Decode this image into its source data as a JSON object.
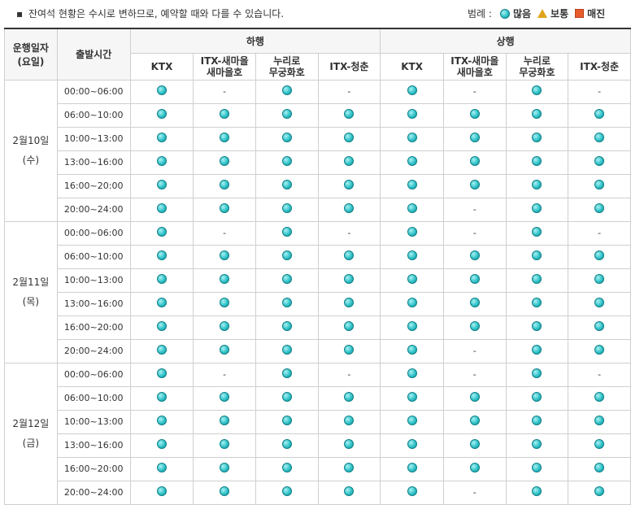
{
  "notice": {
    "bullet": "▪",
    "text": "잔여석 현황은 수시로 변하므로, 예약할 때와 다를 수 있습니다."
  },
  "legend": {
    "title": "범례 :",
    "items": [
      {
        "label": "많음",
        "icon": "circle-icon",
        "color": "#2fc2c8"
      },
      {
        "label": "보통",
        "icon": "triangle-icon",
        "color": "#e0a41a"
      },
      {
        "label": "매진",
        "icon": "square-icon",
        "color": "#e85b2a"
      }
    ]
  },
  "table": {
    "headers": {
      "date": "운행일자\n(요일)",
      "time": "출발시간",
      "down": "하행",
      "up": "상행",
      "trains": [
        "KTX",
        "ITX-새마을\n새마을호",
        "누리로\n무궁화호",
        "ITX-청춘"
      ]
    },
    "days": [
      {
        "date": "2월10일",
        "weekday": "(수)",
        "rows": [
          {
            "time": "00:00~06:00",
            "down": [
              "많음",
              "-",
              "많음",
              "-"
            ],
            "up": [
              "많음",
              "-",
              "많음",
              "-"
            ]
          },
          {
            "time": "06:00~10:00",
            "down": [
              "많음",
              "많음",
              "많음",
              "많음"
            ],
            "up": [
              "많음",
              "많음",
              "많음",
              "많음"
            ]
          },
          {
            "time": "10:00~13:00",
            "down": [
              "많음",
              "많음",
              "많음",
              "많음"
            ],
            "up": [
              "많음",
              "많음",
              "많음",
              "많음"
            ]
          },
          {
            "time": "13:00~16:00",
            "down": [
              "많음",
              "많음",
              "많음",
              "많음"
            ],
            "up": [
              "많음",
              "많음",
              "많음",
              "많음"
            ]
          },
          {
            "time": "16:00~20:00",
            "down": [
              "많음",
              "많음",
              "많음",
              "많음"
            ],
            "up": [
              "많음",
              "많음",
              "많음",
              "많음"
            ]
          },
          {
            "time": "20:00~24:00",
            "down": [
              "많음",
              "많음",
              "많음",
              "많음"
            ],
            "up": [
              "많음",
              "-",
              "많음",
              "많음"
            ]
          }
        ]
      },
      {
        "date": "2월11일",
        "weekday": "(목)",
        "rows": [
          {
            "time": "00:00~06:00",
            "down": [
              "많음",
              "-",
              "많음",
              "-"
            ],
            "up": [
              "많음",
              "-",
              "많음",
              "-"
            ]
          },
          {
            "time": "06:00~10:00",
            "down": [
              "많음",
              "많음",
              "많음",
              "많음"
            ],
            "up": [
              "많음",
              "많음",
              "많음",
              "많음"
            ]
          },
          {
            "time": "10:00~13:00",
            "down": [
              "많음",
              "많음",
              "많음",
              "많음"
            ],
            "up": [
              "많음",
              "많음",
              "많음",
              "많음"
            ]
          },
          {
            "time": "13:00~16:00",
            "down": [
              "많음",
              "많음",
              "많음",
              "많음"
            ],
            "up": [
              "많음",
              "많음",
              "많음",
              "많음"
            ]
          },
          {
            "time": "16:00~20:00",
            "down": [
              "많음",
              "많음",
              "많음",
              "많음"
            ],
            "up": [
              "많음",
              "많음",
              "많음",
              "많음"
            ]
          },
          {
            "time": "20:00~24:00",
            "down": [
              "많음",
              "많음",
              "많음",
              "많음"
            ],
            "up": [
              "많음",
              "-",
              "많음",
              "많음"
            ]
          }
        ]
      },
      {
        "date": "2월12일",
        "weekday": "(금)",
        "rows": [
          {
            "time": "00:00~06:00",
            "down": [
              "많음",
              "-",
              "많음",
              "-"
            ],
            "up": [
              "많음",
              "-",
              "많음",
              "-"
            ]
          },
          {
            "time": "06:00~10:00",
            "down": [
              "많음",
              "많음",
              "많음",
              "많음"
            ],
            "up": [
              "많음",
              "많음",
              "많음",
              "많음"
            ]
          },
          {
            "time": "10:00~13:00",
            "down": [
              "많음",
              "많음",
              "많음",
              "많음"
            ],
            "up": [
              "많음",
              "많음",
              "많음",
              "많음"
            ]
          },
          {
            "time": "13:00~16:00",
            "down": [
              "많음",
              "많음",
              "많음",
              "많음"
            ],
            "up": [
              "많음",
              "많음",
              "많음",
              "많음"
            ]
          },
          {
            "time": "16:00~20:00",
            "down": [
              "많음",
              "많음",
              "많음",
              "많음"
            ],
            "up": [
              "많음",
              "많음",
              "많음",
              "많음"
            ]
          },
          {
            "time": "20:00~24:00",
            "down": [
              "많음",
              "많음",
              "많음",
              "많음"
            ],
            "up": [
              "많음",
              "-",
              "많음",
              "많음"
            ]
          }
        ]
      }
    ]
  }
}
